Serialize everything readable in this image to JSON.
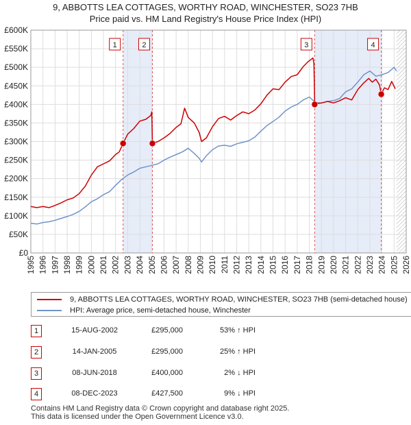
{
  "title_line1": "9, ABBOTTS LEA COTTAGES, WORTHY ROAD, WINCHESTER, SO23 7HB",
  "title_line2": "Price paid vs. HM Land Registry's House Price Index (HPI)",
  "colors": {
    "property": "#cc0000",
    "hpi": "#6f93c8",
    "shade": "#e6ecf8",
    "grid": "#dddddd"
  },
  "legend": {
    "property": "9, ABBOTTS LEA COTTAGES, WORTHY ROAD, WINCHESTER, SO23 7HB (semi-detached house)",
    "hpi": "HPI: Average price, semi-detached house, Winchester"
  },
  "transactions": [
    {
      "num": "1",
      "date": "15-AUG-2002",
      "price": "£295,000",
      "hpi": "53% ↑ HPI"
    },
    {
      "num": "2",
      "date": "14-JAN-2005",
      "price": "£295,000",
      "hpi": "25% ↑ HPI"
    },
    {
      "num": "3",
      "date": "08-JUN-2018",
      "price": "£400,000",
      "hpi": "2% ↓ HPI"
    },
    {
      "num": "4",
      "date": "08-DEC-2023",
      "price": "£427,500",
      "hpi": "9% ↓ HPI"
    }
  ],
  "footer": {
    "line1": "Contains HM Land Registry data © Crown copyright and database right 2025.",
    "line2": "This data is licensed under the Open Government Licence v3.0."
  },
  "chart_data": {
    "type": "line",
    "title": "9, ABBOTTS LEA COTTAGES, WORTHY ROAD, WINCHESTER, SO23 7HB",
    "subtitle": "Price paid vs. HM Land Registry's House Price Index (HPI)",
    "xlim": [
      1995,
      2026
    ],
    "ylim": [
      0,
      600000
    ],
    "x_ticks": [
      "1995",
      "1996",
      "1997",
      "1998",
      "1999",
      "2000",
      "2001",
      "2002",
      "2003",
      "2004",
      "2005",
      "2006",
      "2007",
      "2008",
      "2009",
      "2010",
      "2011",
      "2012",
      "2013",
      "2014",
      "2015",
      "2016",
      "2017",
      "2018",
      "2019",
      "2020",
      "2021",
      "2022",
      "2023",
      "2024",
      "2025",
      "2026"
    ],
    "y_ticks": [
      {
        "value": 0,
        "label": "£0"
      },
      {
        "value": 50000,
        "label": "£50K"
      },
      {
        "value": 100000,
        "label": "£100K"
      },
      {
        "value": 150000,
        "label": "£150K"
      },
      {
        "value": 200000,
        "label": "£200K"
      },
      {
        "value": 250000,
        "label": "£250K"
      },
      {
        "value": 300000,
        "label": "£300K"
      },
      {
        "value": 350000,
        "label": "£350K"
      },
      {
        "value": 400000,
        "label": "£400K"
      },
      {
        "value": 450000,
        "label": "£450K"
      },
      {
        "value": 500000,
        "label": "£500K"
      },
      {
        "value": 550000,
        "label": "£550K"
      },
      {
        "value": 600000,
        "label": "£600K"
      }
    ],
    "shaded_periods": [
      [
        2002.62,
        2005.04
      ],
      [
        2018.44,
        2023.94
      ]
    ],
    "hatched_from": 2025.2,
    "series": [
      {
        "name": "9, ABBOTTS LEA COTTAGES, WORTHY ROAD, WINCHESTER, SO23 7HB (semi-detached house)",
        "x": [
          1995,
          1995.5,
          1996,
          1996.5,
          1997,
          1997.5,
          1998,
          1998.5,
          1999,
          1999.5,
          2000,
          2000.5,
          2001,
          2001.5,
          2002,
          2002.3,
          2002.62,
          2003,
          2003.5,
          2004,
          2004.5,
          2004.9,
          2004.99,
          2005.04,
          2005.5,
          2006,
          2006.5,
          2007,
          2007.4,
          2007.7,
          2008,
          2008.5,
          2008.9,
          2009.1,
          2009.5,
          2010,
          2010.5,
          2011,
          2011.5,
          2012,
          2012.5,
          2013,
          2013.5,
          2014,
          2014.5,
          2015,
          2015.5,
          2016,
          2016.5,
          2017,
          2017.5,
          2017.9,
          2018.1,
          2018.3,
          2018.38,
          2018.44,
          2018.7,
          2019,
          2019.5,
          2020,
          2020.5,
          2021,
          2021.5,
          2022,
          2022.5,
          2022.9,
          2023.2,
          2023.5,
          2023.8,
          2023.94,
          2024.2,
          2024.5,
          2024.8,
          2025.1
        ],
        "values": [
          125000,
          122000,
          125000,
          122000,
          128000,
          135000,
          143000,
          148000,
          160000,
          180000,
          210000,
          232000,
          240000,
          248000,
          265000,
          272000,
          295000,
          320000,
          335000,
          355000,
          360000,
          370000,
          380000,
          295000,
          300000,
          310000,
          322000,
          338000,
          348000,
          390000,
          365000,
          350000,
          325000,
          300000,
          310000,
          340000,
          362000,
          368000,
          358000,
          370000,
          380000,
          375000,
          385000,
          402000,
          425000,
          442000,
          440000,
          460000,
          475000,
          480000,
          502000,
          515000,
          520000,
          525000,
          510000,
          400000,
          403000,
          404000,
          408000,
          404000,
          410000,
          418000,
          412000,
          440000,
          458000,
          470000,
          460000,
          468000,
          452000,
          427500,
          445000,
          440000,
          462000,
          442000
        ]
      },
      {
        "name": "HPI: Average price, semi-detached house, Winchester",
        "x": [
          1995,
          1995.5,
          1996,
          1996.5,
          1997,
          1997.5,
          1998,
          1998.5,
          1999,
          1999.5,
          2000,
          2000.5,
          2001,
          2001.5,
          2002,
          2002.5,
          2003,
          2003.5,
          2004,
          2004.5,
          2005,
          2005.5,
          2006,
          2006.5,
          2007,
          2007.5,
          2008,
          2008.5,
          2008.9,
          2009.1,
          2009.5,
          2010,
          2010.5,
          2011,
          2011.5,
          2012,
          2012.5,
          2013,
          2013.5,
          2014,
          2014.5,
          2015,
          2015.5,
          2016,
          2016.5,
          2017,
          2017.5,
          2018,
          2018.5,
          2019,
          2019.5,
          2020,
          2020.5,
          2021,
          2021.5,
          2022,
          2022.5,
          2023,
          2023.5,
          2024,
          2024.5,
          2025,
          2025.2
        ],
        "values": [
          80000,
          78000,
          82000,
          84000,
          88000,
          93000,
          98000,
          104000,
          112000,
          124000,
          138000,
          146000,
          157000,
          165000,
          182000,
          198000,
          210000,
          218000,
          228000,
          232000,
          236000,
          240000,
          250000,
          258000,
          265000,
          272000,
          282000,
          268000,
          255000,
          245000,
          262000,
          278000,
          288000,
          290000,
          287000,
          294000,
          298000,
          302000,
          312000,
          328000,
          343000,
          354000,
          366000,
          382000,
          393000,
          400000,
          412000,
          420000,
          405000,
          404000,
          408000,
          410000,
          416000,
          434000,
          442000,
          460000,
          480000,
          490000,
          476000,
          480000,
          486000,
          500000,
          490000
        ]
      }
    ],
    "markers": [
      {
        "label": "1",
        "x": 2002.62,
        "y": 295000
      },
      {
        "label": "2",
        "x": 2005.04,
        "y": 295000
      },
      {
        "label": "3",
        "x": 2018.44,
        "y": 400000
      },
      {
        "label": "4",
        "x": 2023.94,
        "y": 427500
      }
    ]
  }
}
